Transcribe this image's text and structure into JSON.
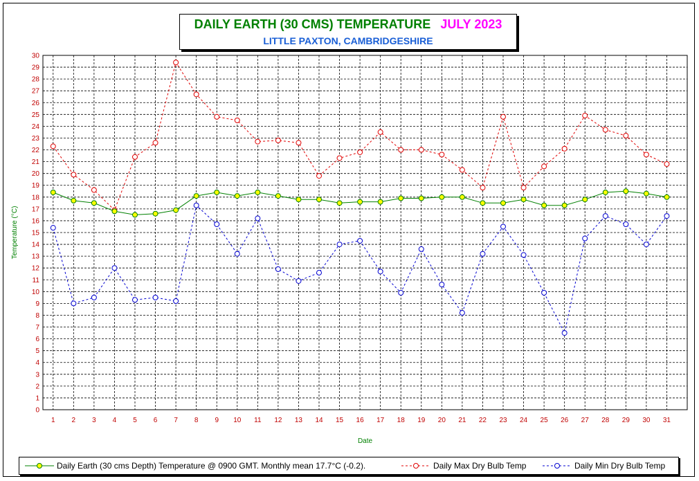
{
  "chart_data": {
    "type": "line",
    "title_main": "DAILY EARTH (30 CMS) TEMPERATURE",
    "title_month": "JULY 2023",
    "subtitle": "LITTLE PAXTON, CAMBRIDGESHIRE",
    "xlabel": "Date",
    "ylabel": "Temperature (°C)",
    "ylim": [
      0,
      30
    ],
    "grid": true,
    "x": [
      1,
      2,
      3,
      4,
      5,
      6,
      7,
      8,
      9,
      10,
      11,
      12,
      13,
      14,
      15,
      16,
      17,
      18,
      19,
      20,
      21,
      22,
      23,
      24,
      25,
      26,
      27,
      28,
      29,
      30,
      31
    ],
    "series": [
      {
        "name": "Daily Earth (30 cms Depth) Temperature @ 0900 GMT. Monthly mean 17.7°C (-0.2).",
        "color": "#008000",
        "marker_fill": "#ffff00",
        "style": "solid",
        "values": [
          18.4,
          17.7,
          17.5,
          16.8,
          16.5,
          16.6,
          16.9,
          18.1,
          18.4,
          18.1,
          18.4,
          18.1,
          17.8,
          17.8,
          17.5,
          17.6,
          17.6,
          17.9,
          17.9,
          18.0,
          18.0,
          17.5,
          17.5,
          17.8,
          17.3,
          17.3,
          17.8,
          18.4,
          18.5,
          18.3,
          18.0
        ]
      },
      {
        "name": "Daily Max Dry Bulb Temp",
        "color": "#e00000",
        "marker_fill": "#ffffff",
        "style": "dashed",
        "values": [
          22.3,
          19.9,
          18.6,
          16.9,
          21.4,
          22.6,
          29.4,
          26.7,
          24.8,
          24.5,
          22.7,
          22.8,
          22.6,
          19.8,
          21.3,
          21.8,
          23.5,
          22.0,
          22.0,
          21.6,
          20.3,
          18.8,
          24.8,
          18.8,
          20.6,
          22.1,
          24.9,
          23.7,
          23.2,
          21.6,
          20.8
        ]
      },
      {
        "name": "Daily Min Dry Bulb Temp",
        "color": "#0000d0",
        "marker_fill": "#ffffff",
        "style": "dashed",
        "values": [
          15.4,
          9.0,
          9.5,
          12.0,
          9.3,
          9.5,
          9.2,
          17.3,
          15.7,
          13.2,
          16.2,
          11.9,
          10.9,
          11.6,
          14.0,
          14.3,
          11.7,
          9.9,
          13.6,
          10.6,
          8.2,
          13.2,
          15.5,
          13.1,
          9.9,
          6.5,
          14.5,
          16.4,
          15.7,
          14.0,
          16.4
        ]
      }
    ],
    "legend_position": "bottom"
  }
}
